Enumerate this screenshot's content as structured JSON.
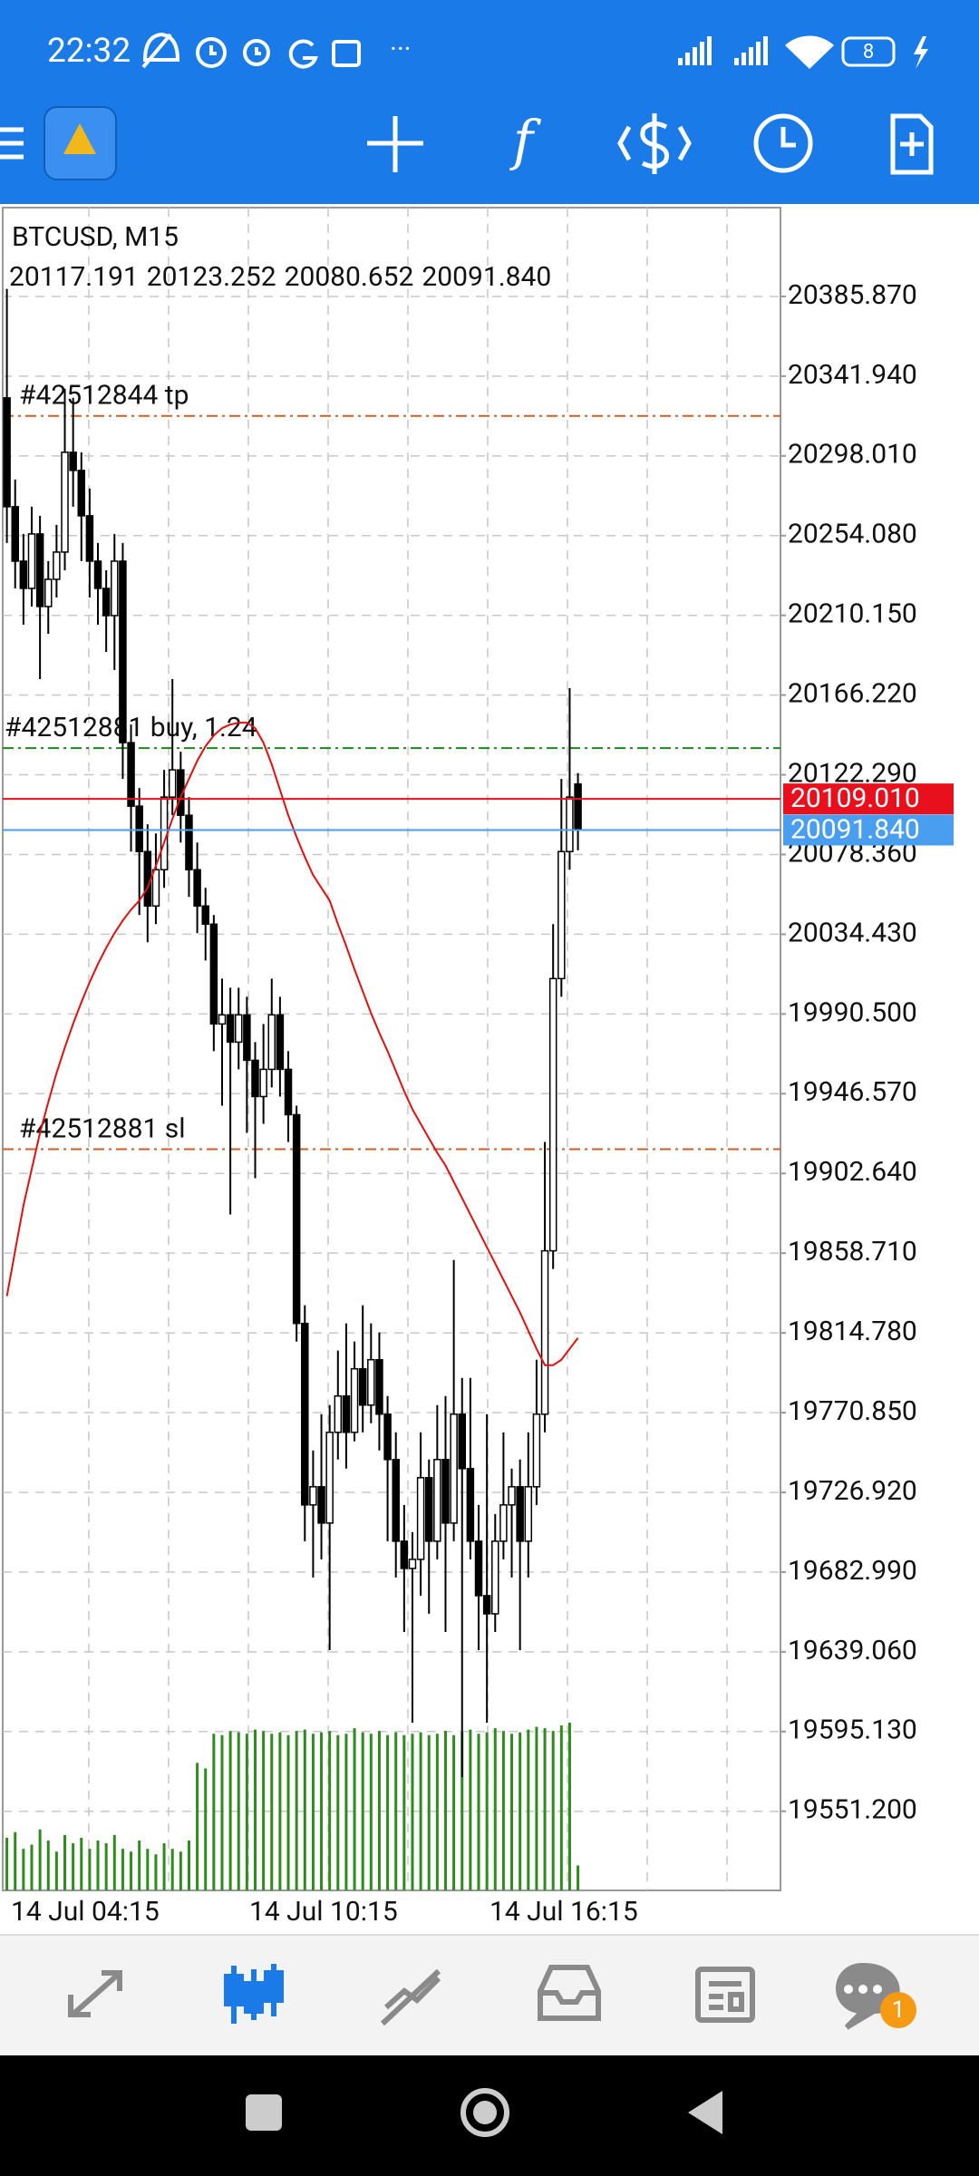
{
  "status_bar": {
    "time": "22:32",
    "battery": "8"
  },
  "chart_data": {
    "type": "candlestick",
    "title": "BTCUSD, M15",
    "ohlc_labels": [
      "20117.191",
      "20123.252",
      "20080.652",
      "20091.840"
    ],
    "ylim": [
      19507.6,
      20434.8
    ],
    "yticks": [
      {
        "value": 20385.87,
        "label": "20385.870"
      },
      {
        "value": 20341.94,
        "label": "20341.940"
      },
      {
        "value": 20298.01,
        "label": "20298.010"
      },
      {
        "value": 20254.08,
        "label": "20254.080"
      },
      {
        "value": 20210.15,
        "label": "20210.150"
      },
      {
        "value": 20166.22,
        "label": "20166.220"
      },
      {
        "value": 20122.29,
        "label": "20122.290"
      },
      {
        "value": 20078.36,
        "label": "20078.360"
      },
      {
        "value": 20034.43,
        "label": "20034.430"
      },
      {
        "value": 19990.5,
        "label": "19990.500"
      },
      {
        "value": 19946.57,
        "label": "19946.570"
      },
      {
        "value": 19902.64,
        "label": "19902.640"
      },
      {
        "value": 19858.71,
        "label": "19858.710"
      },
      {
        "value": 19814.78,
        "label": "19814.780"
      },
      {
        "value": 19770.85,
        "label": "19770.850"
      },
      {
        "value": 19726.92,
        "label": "19726.920"
      },
      {
        "value": 19682.99,
        "label": "19682.990"
      },
      {
        "value": 19639.06,
        "label": "19639.060"
      },
      {
        "value": 19595.13,
        "label": "19595.130"
      },
      {
        "value": 19551.2,
        "label": "19551.200"
      }
    ],
    "x_labels": [
      "14 Jul 04:15",
      "14 Jul 10:15",
      "14 Jul 16:15"
    ],
    "grid": true,
    "ohlc": [
      [
        20330,
        20390,
        20250,
        20270
      ],
      [
        20270,
        20285,
        20225,
        20240
      ],
      [
        20240,
        20255,
        20205,
        20225
      ],
      [
        20225,
        20270,
        20215,
        20255
      ],
      [
        20255,
        20265,
        20175,
        20215
      ],
      [
        20215,
        20240,
        20200,
        20230
      ],
      [
        20230,
        20260,
        20220,
        20245
      ],
      [
        20245,
        20335,
        20235,
        20300
      ],
      [
        20300,
        20330,
        20270,
        20290
      ],
      [
        20290,
        20300,
        20240,
        20265
      ],
      [
        20265,
        20280,
        20220,
        20240
      ],
      [
        20240,
        20250,
        20205,
        20225
      ],
      [
        20225,
        20235,
        20190,
        20210
      ],
      [
        20210,
        20255,
        20180,
        20240
      ],
      [
        20240,
        20250,
        20120,
        20140
      ],
      [
        20140,
        20150,
        20080,
        20105
      ],
      [
        20105,
        20115,
        20045,
        20080
      ],
      [
        20080,
        20095,
        20030,
        20050
      ],
      [
        20050,
        20090,
        20040,
        20070
      ],
      [
        20070,
        20125,
        20060,
        20110
      ],
      [
        20110,
        20175,
        20100,
        20125
      ],
      [
        20125,
        20135,
        20085,
        20100
      ],
      [
        20100,
        20110,
        20055,
        20070
      ],
      [
        20070,
        20085,
        20035,
        20050
      ],
      [
        20050,
        20060,
        20020,
        20040
      ],
      [
        20040,
        20045,
        19970,
        19985
      ],
      [
        19985,
        20010,
        19940,
        19990
      ],
      [
        19990,
        20005,
        19880,
        19975
      ],
      [
        19975,
        20005,
        19960,
        19990
      ],
      [
        19990,
        20000,
        19925,
        19965
      ],
      [
        19965,
        19975,
        19900,
        19945
      ],
      [
        19945,
        19985,
        19930,
        19960
      ],
      [
        19960,
        20010,
        19950,
        19990
      ],
      [
        19990,
        20000,
        19945,
        19960
      ],
      [
        19960,
        19970,
        19920,
        19935
      ],
      [
        19935,
        19940,
        19810,
        19820
      ],
      [
        19820,
        19830,
        19700,
        19720
      ],
      [
        19720,
        19750,
        19680,
        19730
      ],
      [
        19730,
        19770,
        19690,
        19710
      ],
      [
        19710,
        19775,
        19640,
        19760
      ],
      [
        19760,
        19805,
        19745,
        19780
      ],
      [
        19780,
        19820,
        19740,
        19760
      ],
      [
        19760,
        19810,
        19755,
        19795
      ],
      [
        19795,
        19830,
        19760,
        19775
      ],
      [
        19775,
        19820,
        19765,
        19800
      ],
      [
        19800,
        19815,
        19750,
        19770
      ],
      [
        19770,
        19780,
        19700,
        19745
      ],
      [
        19745,
        19760,
        19680,
        19700
      ],
      [
        19700,
        19720,
        19650,
        19685
      ],
      [
        19685,
        19705,
        19600,
        19690
      ],
      [
        19690,
        19760,
        19670,
        19735
      ],
      [
        19735,
        19745,
        19660,
        19700
      ],
      [
        19700,
        19775,
        19690,
        19745
      ],
      [
        19745,
        19780,
        19650,
        19710
      ],
      [
        19710,
        19855,
        19700,
        19770
      ],
      [
        19770,
        19790,
        19570,
        19740
      ],
      [
        19740,
        19790,
        19690,
        19700
      ],
      [
        19700,
        19720,
        19640,
        19670
      ],
      [
        19670,
        19770,
        19600,
        19660
      ],
      [
        19660,
        19715,
        19650,
        19700
      ],
      [
        19700,
        19760,
        19690,
        19720
      ],
      [
        19720,
        19740,
        19680,
        19730
      ],
      [
        19730,
        19745,
        19640,
        19700
      ],
      [
        19700,
        19760,
        19680,
        19730
      ],
      [
        19730,
        19800,
        19720,
        19770
      ],
      [
        19770,
        19920,
        19760,
        19860
      ],
      [
        19860,
        20040,
        19850,
        20010
      ],
      [
        20010,
        20120,
        20000,
        20080
      ],
      [
        20080,
        20170,
        20070,
        20110
      ],
      [
        20117.191,
        20123.252,
        20080.652,
        20091.84
      ]
    ],
    "ma": {
      "color": "#e01010",
      "values": [
        19835,
        19860,
        19885,
        19905,
        19925,
        19942,
        19958,
        19972,
        19985,
        19997,
        20008,
        20018,
        20027,
        20035,
        20042,
        20048,
        20053,
        20060,
        20072,
        20085,
        20098,
        20110,
        20120,
        20130,
        20138,
        20144,
        20148,
        20150,
        20151,
        20151,
        20148,
        20140,
        20128,
        20114,
        20100,
        20088,
        20077,
        20067,
        20060,
        20053,
        20040,
        20028,
        20015,
        20003,
        19991,
        19980,
        19970,
        19959,
        19948,
        19938,
        19930,
        19922,
        19914,
        19907,
        19898,
        19889,
        19880,
        19871,
        19862,
        19853,
        19844,
        19835,
        19826,
        19816,
        19806,
        19797,
        19797,
        19800,
        19806,
        19812
      ]
    },
    "volumes": {
      "color": "#2e8b1e",
      "values": [
        38,
        42,
        30,
        33,
        44,
        36,
        28,
        40,
        34,
        38,
        30,
        36,
        34,
        40,
        30,
        28,
        36,
        30,
        26,
        34,
        30,
        28,
        36,
        92,
        88,
        113,
        112,
        115,
        114,
        113,
        116,
        115,
        113,
        114,
        112,
        115,
        116,
        113,
        114,
        115,
        112,
        113,
        117,
        114,
        113,
        115,
        112,
        114,
        112,
        113,
        114,
        112,
        113,
        115,
        112,
        114,
        116,
        113,
        114,
        117,
        115,
        113,
        114,
        116,
        118,
        117,
        115,
        119,
        121,
        18
      ]
    },
    "order_lines": [
      {
        "label": "#42512844 tp",
        "value": 20320,
        "color": "#c8602a"
      },
      {
        "label": "#42512881 buy, 1.24",
        "value": 20137,
        "color": "#1a8a1a"
      },
      {
        "label": "#42512881 sl",
        "value": 19916,
        "color": "#c8602a"
      }
    ],
    "price_lines": [
      {
        "value": 20109.01,
        "label": "20109.010",
        "color": "#e8101c"
      },
      {
        "value": 20091.84,
        "label": "20091.840",
        "color": "#4a9ef0"
      }
    ]
  },
  "bottom_nav": {
    "badge": "1"
  }
}
